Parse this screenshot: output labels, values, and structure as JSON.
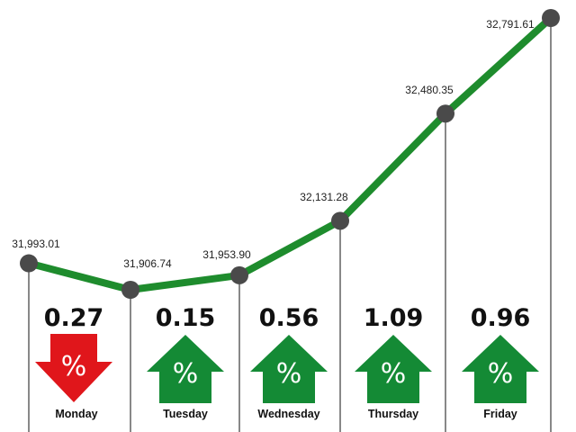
{
  "chart_data": {
    "type": "line",
    "categories": [
      "Monday",
      "Tuesday",
      "Wednesday",
      "Thursday",
      "Friday"
    ],
    "x": [
      "",
      "",
      "",
      "",
      "",
      ""
    ],
    "values": [
      31993.01,
      31906.74,
      31953.9,
      32131.28,
      32480.35,
      32791.61
    ],
    "value_labels": [
      "31,993.01",
      "31,906.74",
      "31,953.90",
      "32,131.28",
      "32,480.35",
      "32,791.61"
    ],
    "daily_change": [
      {
        "day": "Monday",
        "percent": "0.27",
        "direction": "down"
      },
      {
        "day": "Tuesday",
        "percent": "0.15",
        "direction": "up"
      },
      {
        "day": "Wednesday",
        "percent": "0.56",
        "direction": "up"
      },
      {
        "day": "Thursday",
        "percent": "1.09",
        "direction": "up"
      },
      {
        "day": "Friday",
        "percent": "0.96",
        "direction": "up"
      }
    ],
    "arrow_symbol": "%",
    "title": "",
    "xlabel": "",
    "ylabel": "",
    "ylim": [
      31850,
      32850
    ],
    "grid": false,
    "legend": "none"
  },
  "colors": {
    "line": "#1e8c2d",
    "marker": "#4a4a4a",
    "up_arrow": "#148a35",
    "down_arrow": "#e0161b",
    "divider": "#555555"
  }
}
